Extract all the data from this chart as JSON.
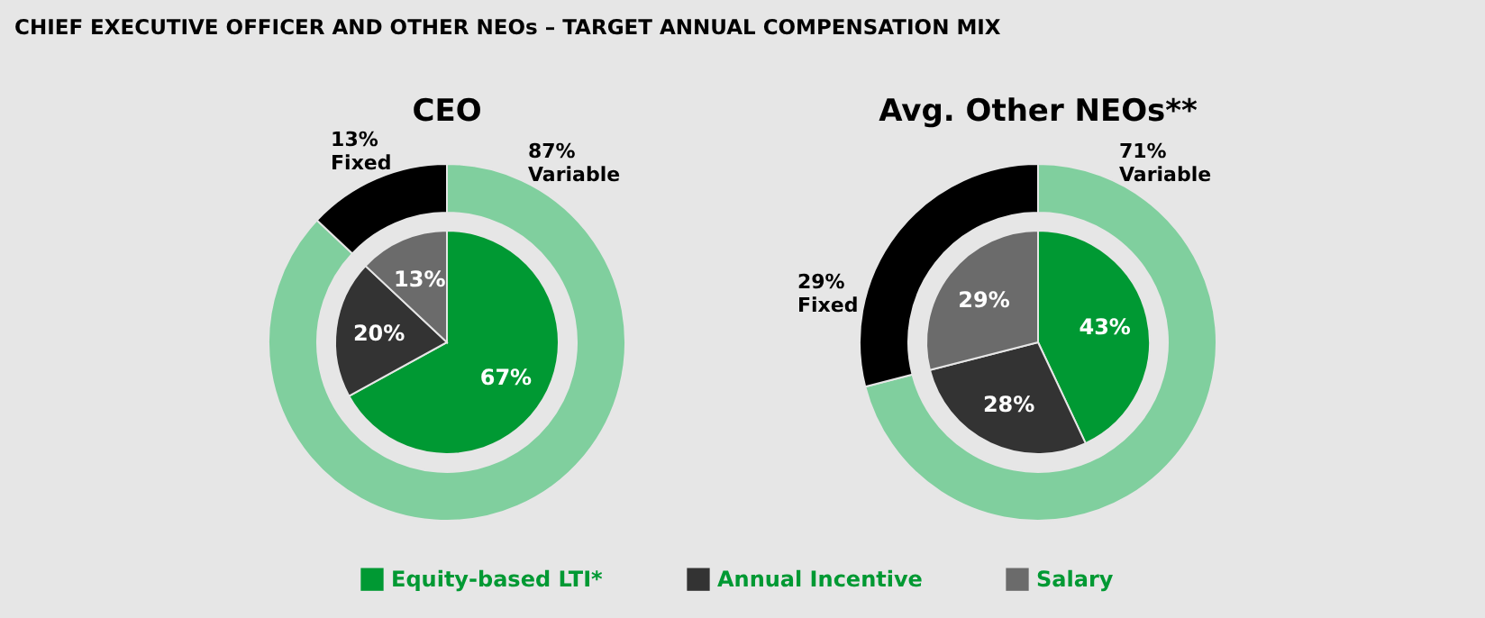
{
  "chart_data": [
    {
      "type": "donut",
      "title": "CEO",
      "annotations": [
        "CHIEF EXECUTIVE OFFICER AND OTHER NEOs – TARGET ANNUAL COMPENSATION MIX"
      ],
      "categories": [
        "Variable",
        "Fixed"
      ],
      "values": [
        87,
        13
      ],
      "colors": [
        "#80cf9e",
        "#000000"
      ],
      "value_labels": [
        "87%",
        "13%"
      ]
    },
    {
      "type": "pie",
      "categories": [
        "Equity-based LTI*",
        "Annual Incentive",
        "Salary"
      ],
      "values": [
        67,
        20,
        13
      ],
      "colors": [
        "#009933",
        "#333333",
        "#6b6b6b"
      ],
      "value_labels": [
        "67%",
        "20%",
        "13%"
      ],
      "legend": "bottom"
    },
    {
      "type": "donut",
      "title": "Avg. Other NEOs**",
      "categories": [
        "Variable",
        "Fixed"
      ],
      "values": [
        71,
        29
      ],
      "colors": [
        "#80cf9e",
        "#000000"
      ],
      "value_labels": [
        "71%",
        "29%"
      ]
    },
    {
      "type": "pie",
      "categories": [
        null,
        null,
        null
      ],
      "values": [
        43,
        28,
        29
      ],
      "colors": [
        "#009933",
        "#333333",
        "#6b6b6b"
      ],
      "value_labels": [
        "43%",
        "28%",
        "29%"
      ]
    }
  ]
}
